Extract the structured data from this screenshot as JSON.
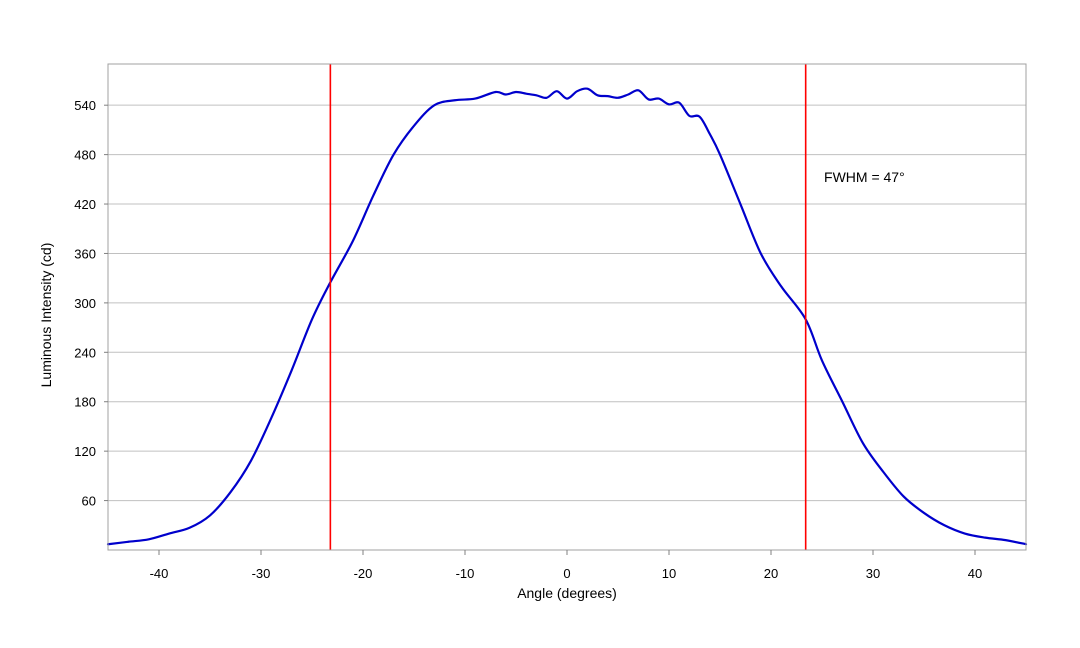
{
  "chart_data": {
    "type": "line",
    "title": "",
    "xlabel": "Angle (degrees)",
    "ylabel": "Luminous Intensity (cd)",
    "xlim": [
      -45,
      45
    ],
    "ylim": [
      0,
      590
    ],
    "x_ticks": [
      -40,
      -30,
      -20,
      -10,
      0,
      10,
      20,
      30,
      40
    ],
    "y_ticks": [
      60,
      120,
      180,
      240,
      300,
      360,
      420,
      480,
      540
    ],
    "grid": "horizontal",
    "legend": "none",
    "colors": {
      "series": "#0000cc",
      "markers": "#ff0000",
      "grid": "#c0c0c0",
      "frame": "#a0a0a0"
    },
    "series": [
      {
        "x": [
          -45,
          -43,
          -41,
          -39,
          -37,
          -35,
          -33,
          -31,
          -29,
          -27,
          -25,
          -23.2,
          -21,
          -19,
          -17,
          -15,
          -13,
          -11,
          -9,
          -7,
          -6,
          -5,
          -4,
          -3,
          -2,
          -1,
          0,
          1,
          2,
          3,
          4,
          5,
          6,
          7,
          8,
          9,
          10,
          11,
          12,
          13,
          14,
          15,
          17,
          19,
          21,
          23.4,
          25,
          27,
          29,
          31,
          33,
          35,
          37,
          39,
          41,
          43,
          45
        ],
        "y": [
          7,
          10,
          13,
          20,
          27,
          42,
          70,
          108,
          160,
          218,
          280,
          325,
          375,
          430,
          480,
          515,
          540,
          546,
          548,
          556,
          553,
          556,
          554,
          552,
          549,
          557,
          548,
          557,
          560,
          552,
          551,
          549,
          553,
          558,
          547,
          548,
          541,
          543,
          527,
          526,
          505,
          480,
          420,
          360,
          320,
          280,
          230,
          180,
          130,
          95,
          65,
          45,
          30,
          20,
          15,
          12,
          7
        ]
      }
    ],
    "vlines": [
      -23.2,
      23.4
    ],
    "annotations": [
      {
        "text": "FWHM = 47°",
        "x": 25.2,
        "y": 447
      }
    ]
  }
}
